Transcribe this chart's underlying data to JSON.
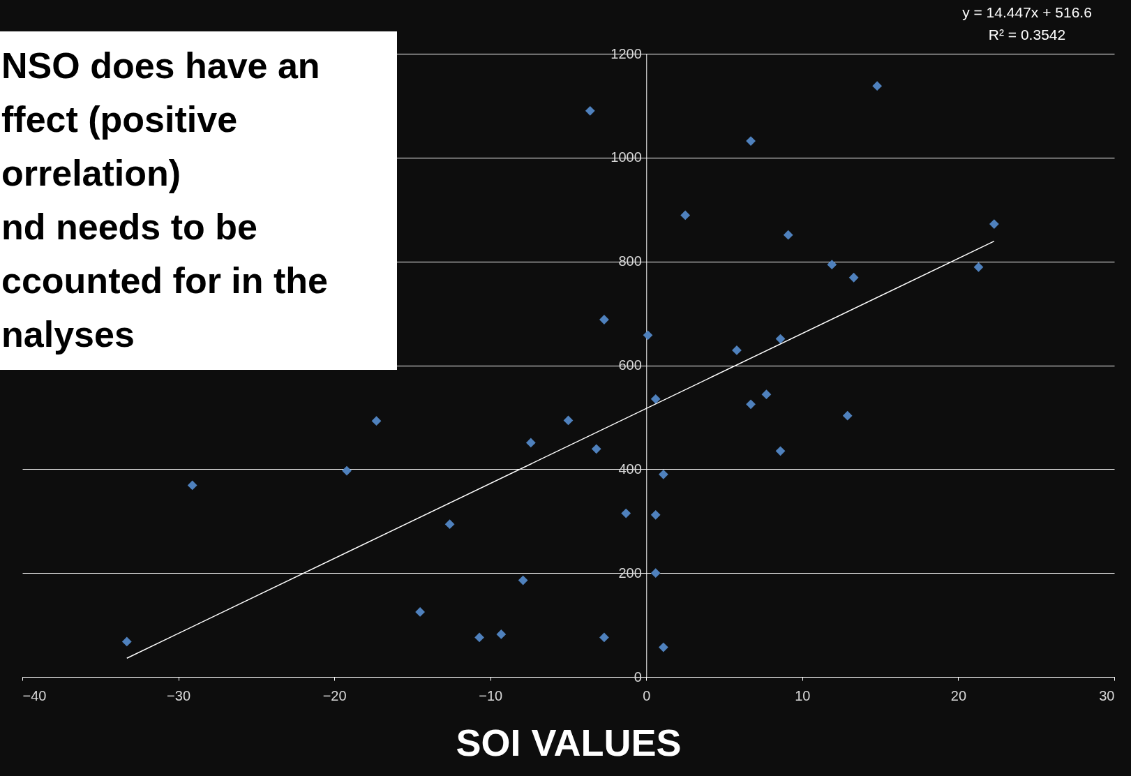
{
  "chart_data": {
    "type": "scatter",
    "xlabel": "SOI VALUES",
    "xlim": [
      -40,
      30
    ],
    "ylim": [
      0,
      1200
    ],
    "xticks": [
      -40,
      -30,
      -20,
      -10,
      0,
      10,
      20,
      30
    ],
    "yticks": [
      0,
      200,
      400,
      600,
      800,
      1000,
      1200
    ],
    "grid": "y",
    "annotations": [
      "NSO does have an\nffect (positive\norrelation)\nnd needs to be\nccounted for in the\nnalyses",
      "y = 14.447x + 516.6",
      "R² = 0.3542"
    ],
    "series": [
      {
        "marker": "diamond",
        "color": "#4f81bd",
        "x": [
          -33.3,
          -29.1,
          -19.2,
          -17.3,
          -14.5,
          -12.6,
          -10.7,
          -9.3,
          -7.9,
          -7.4,
          -5.0,
          -3.6,
          -3.2,
          -2.7,
          -2.7,
          -1.3,
          0.1,
          0.6,
          0.6,
          0.6,
          1.1,
          1.1,
          2.5,
          5.8,
          6.7,
          6.7,
          7.7,
          8.6,
          8.6,
          9.1,
          11.9,
          12.9,
          13.3,
          14.8,
          21.3,
          22.3
        ],
        "values": [
          68,
          369,
          397,
          493,
          125,
          294,
          76,
          82,
          186,
          451,
          494,
          1090,
          439,
          688,
          76,
          315,
          658,
          535,
          312,
          200,
          390,
          57,
          889,
          629,
          1032,
          525,
          544,
          651,
          435,
          851,
          794,
          503,
          769,
          1138,
          789,
          872
        ]
      },
      {
        "type": "line",
        "color": "#ffffff",
        "line_style": "solid",
        "x": [
          -33.3,
          22.3
        ],
        "values": [
          36,
          839
        ]
      }
    ]
  }
}
